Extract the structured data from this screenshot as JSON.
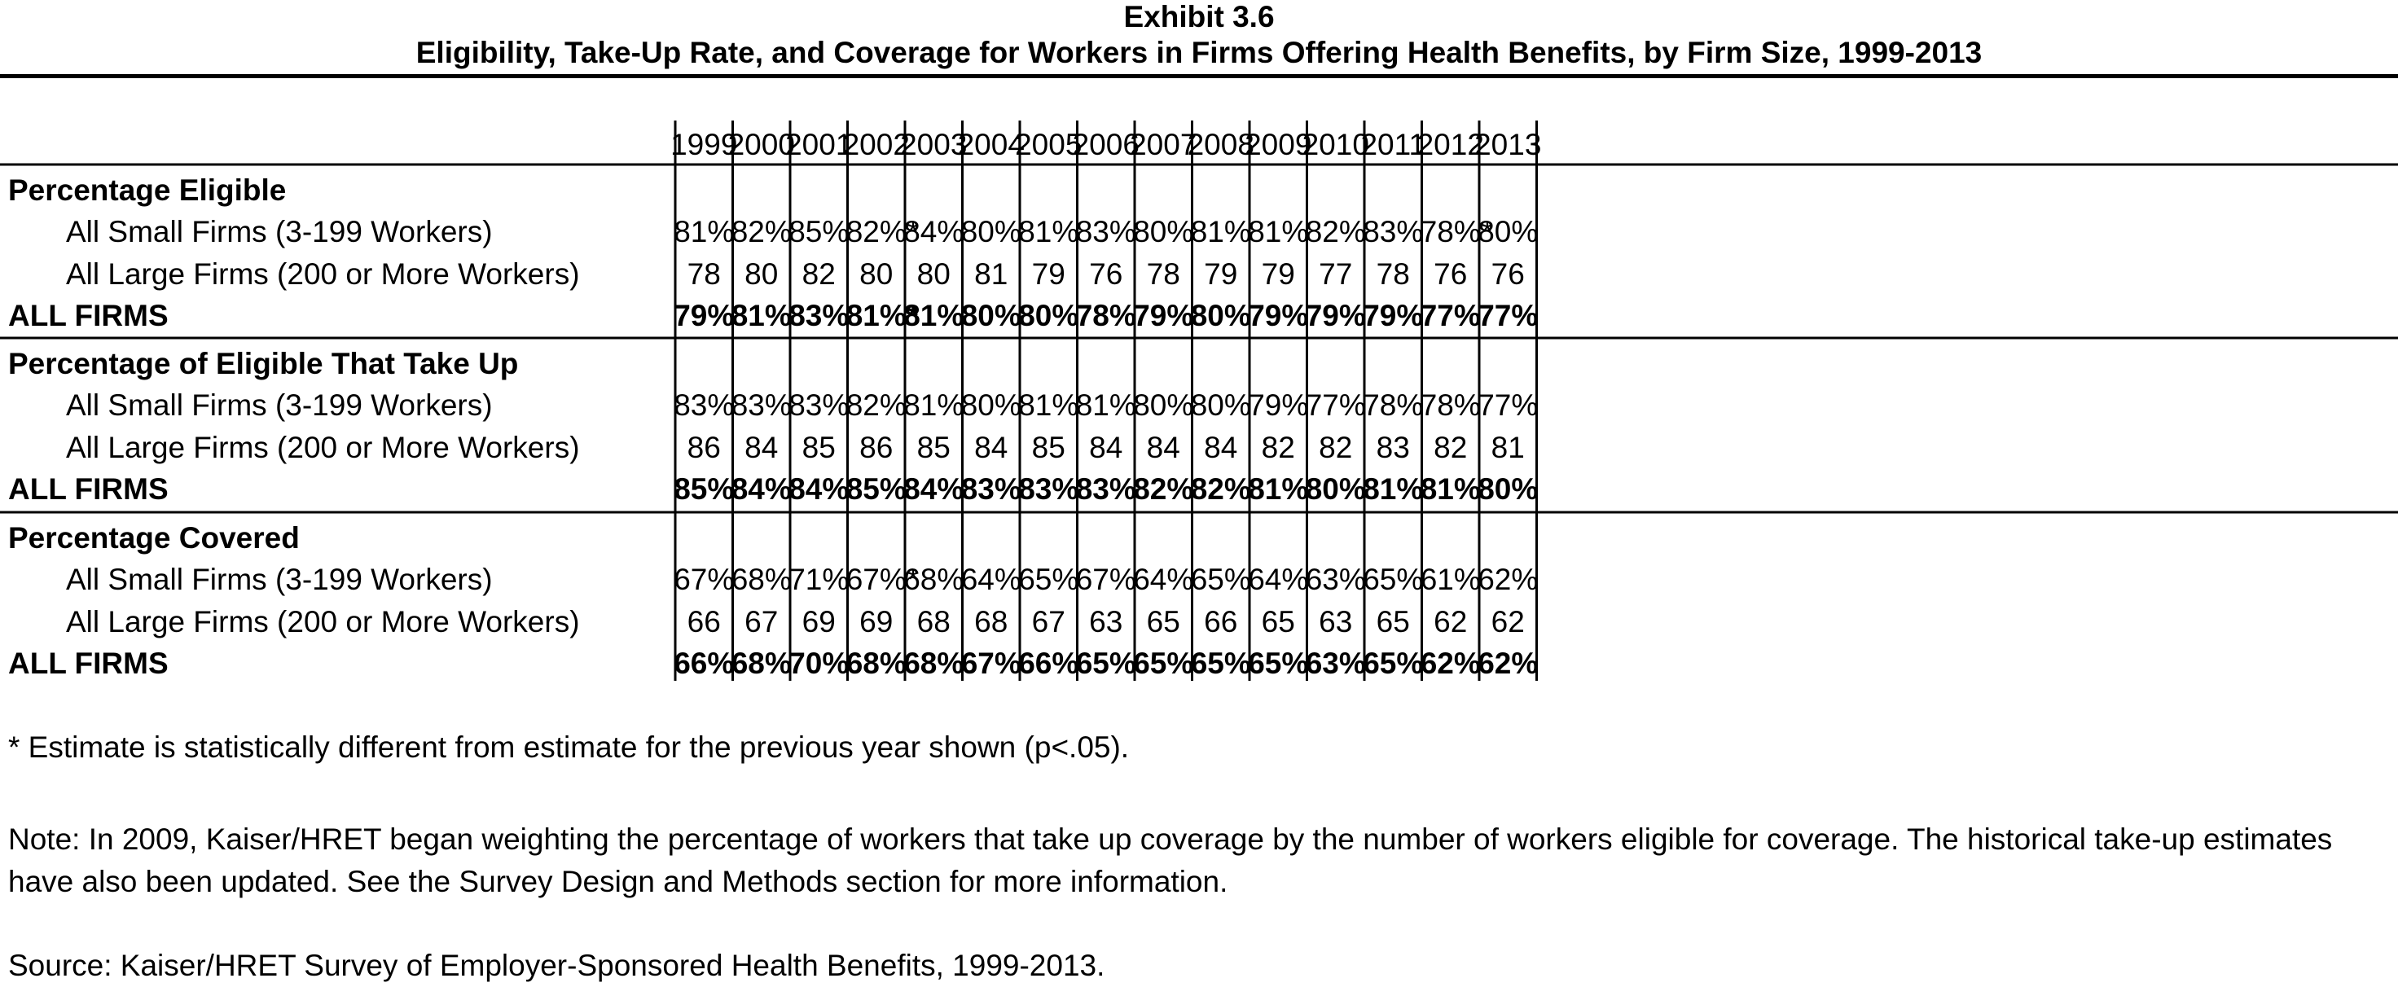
{
  "title": "Exhibit 3.6",
  "subtitle": "Eligibility, Take-Up Rate, and Coverage for Workers in Firms Offering Health Benefits, by Firm Size, 1999-2013",
  "chart_data": {
    "type": "table",
    "columns": [
      "1999",
      "2000",
      "2001",
      "2002",
      "2003",
      "2004",
      "2005",
      "2006",
      "2007",
      "2008",
      "2009",
      "2010",
      "2011",
      "2012",
      "2013"
    ],
    "sections": [
      {
        "heading": "Percentage Eligible",
        "rows": [
          {
            "label": "All Small Firms (3-199 Workers)",
            "bold": false,
            "cells": [
              "81%",
              "82%",
              "85%",
              "82%*",
              "84%",
              "80%",
              "81%",
              "83%",
              "80%",
              "81%",
              "81%",
              "82%",
              "83%",
              "78%*",
              "80%"
            ]
          },
          {
            "label": "All Large Firms (200 or More Workers)",
            "bold": false,
            "cells": [
              "78",
              "80",
              "82",
              "80",
              "80",
              "81",
              "79",
              "76",
              "78",
              "79",
              "79",
              "77",
              "78",
              "76",
              "76"
            ]
          },
          {
            "label": "ALL FIRMS",
            "bold": true,
            "cells": [
              "79%",
              "81%",
              "83%",
              "81%*",
              "81%",
              "80%",
              "80%",
              "78%",
              "79%",
              "80%",
              "79%",
              "79%",
              "79%",
              "77%",
              "77%"
            ]
          }
        ]
      },
      {
        "heading": "Percentage of Eligible That Take Up",
        "rows": [
          {
            "label": "All Small Firms (3-199 Workers)",
            "bold": false,
            "cells": [
              "83%",
              "83%",
              "83%",
              "82%",
              "81%",
              "80%",
              "81%",
              "81%",
              "80%",
              "80%",
              "79%",
              "77%",
              "78%",
              "78%",
              "77%"
            ]
          },
          {
            "label": "All Large Firms (200 or More Workers)",
            "bold": false,
            "cells": [
              "86",
              "84",
              "85",
              "86",
              "85",
              "84",
              "85",
              "84",
              "84",
              "84",
              "82",
              "82",
              "83",
              "82",
              "81"
            ]
          },
          {
            "label": "ALL FIRMS",
            "bold": true,
            "cells": [
              "85%",
              "84%",
              "84%",
              "85%",
              "84%",
              "83%",
              "83%",
              "83%",
              "82%",
              "82%",
              "81%",
              "80%",
              "81%",
              "81%",
              "80%"
            ]
          }
        ]
      },
      {
        "heading": "Percentage Covered",
        "rows": [
          {
            "label": "All Small Firms (3-199 Workers)",
            "bold": false,
            "cells": [
              "67%",
              "68%",
              "71%",
              "67%*",
              "68%",
              "64%",
              "65%",
              "67%",
              "64%",
              "65%",
              "64%",
              "63%",
              "65%",
              "61%",
              "62%"
            ]
          },
          {
            "label": "All Large Firms (200 or More Workers)",
            "bold": false,
            "cells": [
              "66",
              "67",
              "69",
              "69",
              "68",
              "68",
              "67",
              "63",
              "65",
              "66",
              "65",
              "63",
              "65",
              "62",
              "62"
            ]
          },
          {
            "label": "ALL FIRMS",
            "bold": true,
            "cells": [
              "66%",
              "68%",
              "70%",
              "68%",
              "68%",
              "67%",
              "66%",
              "65%",
              "65%",
              "65%",
              "65%",
              "63%",
              "65%",
              "62%",
              "62%"
            ]
          }
        ]
      }
    ]
  },
  "notes": {
    "asterisk": "* Estimate is statistically different from estimate for the previous year shown (p<.05).",
    "weighting": "Note: In 2009, Kaiser/HRET began weighting the percentage of workers that take up coverage by the number of workers eligible for coverage.  The historical take-up estimates have also been updated.  See the Survey Design and Methods section for more information.",
    "source": "Source: Kaiser/HRET Survey of Employer-Sponsored Health Benefits, 1999-2013."
  }
}
